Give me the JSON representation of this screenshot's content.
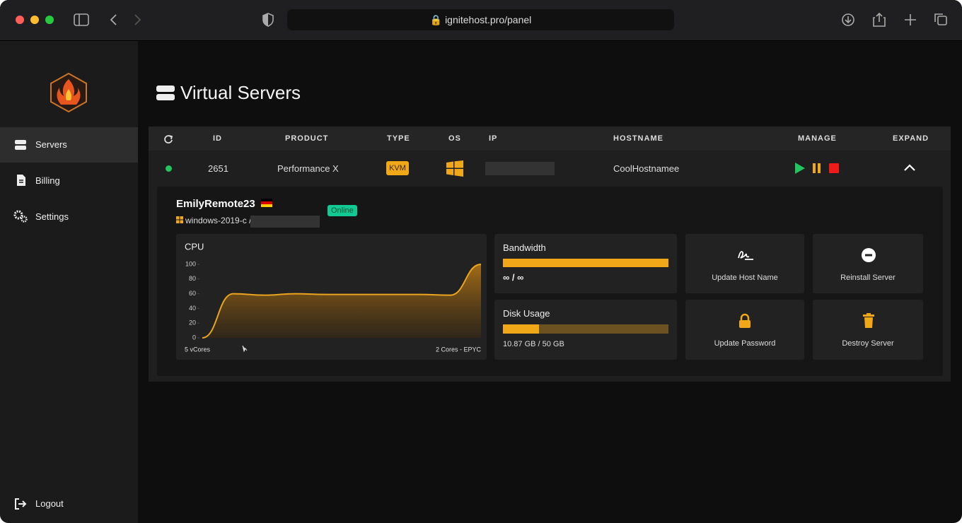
{
  "browser": {
    "url": "ignitehost.pro/panel"
  },
  "sidebar": {
    "items": [
      "Servers",
      "Billing",
      "Settings"
    ],
    "logout": "Logout"
  },
  "page": {
    "title": "Virtual Servers"
  },
  "table": {
    "headers": [
      "ID",
      "PRODUCT",
      "TYPE",
      "OS",
      "IP",
      "HOSTNAME",
      "MANAGE",
      "EXPAND"
    ],
    "row": {
      "id": "2651",
      "product": "Performance X",
      "type": "KVM",
      "hostname": "CoolHostnamee"
    }
  },
  "details": {
    "name": "EmilyRemote23",
    "os_path": "windows-2019-c /",
    "status": "Online",
    "cpu_chart": {
      "type": "line",
      "title": "CPU",
      "values": [
        0,
        60,
        58,
        60,
        59,
        59,
        59,
        59,
        58,
        100
      ],
      "color": "#e9a520",
      "ylim": [
        0,
        100
      ],
      "yticks": [
        0,
        20,
        40,
        60,
        80,
        100
      ],
      "left_caption": "5 vCores",
      "right_caption": "2 Cores - EPYC"
    },
    "bandwidth": {
      "label": "Bandwidth",
      "value_label": "∞ / ∞"
    },
    "disk_usage": {
      "label": "Disk Usage",
      "value_label": "10.87 GB / 50 GB",
      "used": 10.87,
      "total": 50
    },
    "actions": [
      "Update Host Name",
      "Reinstall Server",
      "Update Password",
      "Destroy Server"
    ]
  }
}
